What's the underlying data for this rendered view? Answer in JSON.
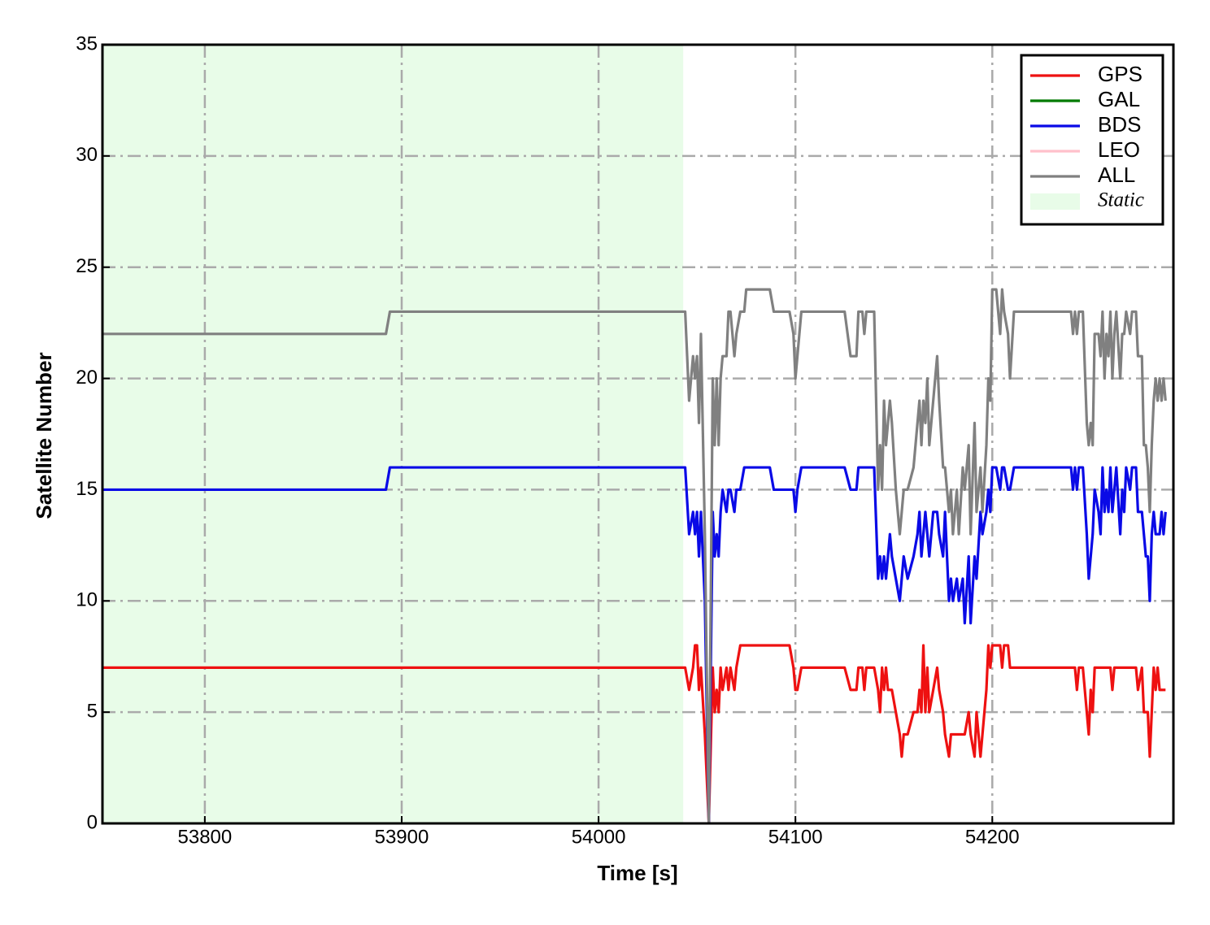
{
  "chart_data": {
    "type": "line",
    "x_label": "Time [s]",
    "y_label": "Satellite Number",
    "x": [
      53748,
      53892,
      53894,
      54044,
      54046,
      54048,
      54049,
      54050,
      54051,
      54052,
      54054,
      54056,
      54058,
      54059,
      54060,
      54061,
      54062,
      54063,
      54065,
      54066,
      54067,
      54069,
      54070,
      54072,
      54074,
      54075,
      54087,
      54089,
      54097,
      54099,
      54100,
      54101,
      54103,
      54125,
      54128,
      54131,
      54132,
      54134,
      54135,
      54136,
      54140,
      54142,
      54143,
      54144,
      54145,
      54146,
      54147,
      54148,
      54149,
      54151,
      54153,
      54154,
      54155,
      54157,
      54160,
      54162,
      54163,
      54164,
      54165,
      54166,
      54167,
      54168,
      54170,
      54172,
      54173,
      54175,
      54176,
      54178,
      54179,
      54180,
      54182,
      54183,
      54185,
      54186,
      54188,
      54189,
      54191,
      54192,
      54194,
      54195,
      54197,
      54198,
      54199,
      54200,
      54202,
      54204,
      54205,
      54206,
      54208,
      54209,
      54211,
      54240,
      54241,
      54242,
      54243,
      54244,
      54246,
      54248,
      54249,
      54250,
      54251,
      54252,
      54254,
      54255,
      54256,
      54257,
      54258,
      54259,
      54260,
      54261,
      54262,
      54263,
      54265,
      54266,
      54267,
      54268,
      54270,
      54271,
      54273,
      54274,
      54276,
      54277,
      54278,
      54279,
      54280,
      54281,
      54282,
      54283,
      54284,
      54285,
      54286,
      54287,
      54288
    ],
    "series": [
      {
        "name": "GPS",
        "color": "#ee1111",
        "values": [
          7,
          7,
          7,
          7,
          6,
          7,
          8,
          8,
          6,
          7,
          4,
          0,
          7,
          5,
          6,
          5,
          7,
          6,
          7,
          6,
          7,
          6,
          7,
          8,
          8,
          8,
          8,
          8,
          8,
          7,
          6,
          6,
          7,
          7,
          6,
          6,
          7,
          7,
          6,
          7,
          7,
          6,
          5,
          7,
          6,
          7,
          6,
          6,
          6,
          5,
          4,
          3,
          4,
          4,
          5,
          5,
          6,
          5,
          8,
          5,
          7,
          5,
          6,
          7,
          6,
          5,
          4,
          3,
          4,
          4,
          4,
          4,
          4,
          4,
          5,
          4,
          3,
          5,
          3,
          4,
          6,
          8,
          7,
          8,
          8,
          8,
          7,
          8,
          8,
          7,
          7,
          7,
          7,
          7,
          6,
          7,
          7,
          5,
          4,
          6,
          5,
          7,
          7,
          7,
          7,
          7,
          7,
          7,
          7,
          6,
          7,
          7,
          7,
          7,
          7,
          7,
          7,
          7,
          7,
          6,
          7,
          5,
          5,
          5,
          3,
          5,
          7,
          6,
          7,
          6,
          6,
          6,
          6
        ]
      },
      {
        "name": "GAL",
        "color": "#007a00"
      },
      {
        "name": "BDS",
        "color": "#0a0ae6",
        "values": [
          15,
          15,
          16,
          16,
          13,
          14,
          13,
          14,
          12,
          14,
          10,
          0,
          14,
          12,
          13,
          12,
          14,
          15,
          14,
          15,
          15,
          14,
          15,
          15,
          16,
          16,
          16,
          15,
          15,
          15,
          14,
          15,
          16,
          16,
          15,
          15,
          16,
          16,
          16,
          16,
          16,
          11,
          12,
          11,
          12,
          11,
          12,
          13,
          12,
          11,
          10,
          11,
          12,
          11,
          12,
          13,
          14,
          12,
          13,
          14,
          13,
          12,
          14,
          14,
          13,
          12,
          14,
          10,
          11,
          10,
          11,
          10,
          11,
          9,
          12,
          9,
          12,
          11,
          14,
          13,
          14,
          15,
          14,
          16,
          16,
          15,
          16,
          16,
          15,
          15,
          16,
          16,
          15,
          16,
          15,
          16,
          16,
          13,
          11,
          12,
          13,
          15,
          14,
          13,
          16,
          14,
          15,
          14,
          16,
          14,
          15,
          16,
          13,
          15,
          14,
          16,
          15,
          16,
          16,
          14,
          14,
          13,
          12,
          12,
          10,
          13,
          14,
          13,
          13,
          13,
          14,
          13,
          14
        ]
      },
      {
        "name": "LEO",
        "color": "#ffc0cb"
      },
      {
        "name": "ALL",
        "color": "#808080",
        "values": [
          22,
          22,
          23,
          23,
          19,
          21,
          20,
          21,
          18,
          22,
          13,
          0,
          20,
          17,
          20,
          17,
          20,
          21,
          21,
          23,
          23,
          21,
          22,
          23,
          23,
          24,
          24,
          23,
          23,
          22,
          20,
          21,
          23,
          23,
          21,
          21,
          23,
          23,
          22,
          23,
          23,
          15,
          17,
          15,
          19,
          17,
          18,
          19,
          18,
          15,
          13,
          14,
          15,
          15,
          16,
          18,
          19,
          17,
          19,
          18,
          20,
          17,
          19,
          21,
          19,
          16,
          16,
          14,
          15,
          13,
          15,
          13,
          16,
          15,
          17,
          13,
          18,
          14,
          16,
          14,
          17,
          20,
          19,
          24,
          24,
          22,
          24,
          23,
          22,
          20,
          23,
          23,
          22,
          23,
          22,
          23,
          23,
          18,
          17,
          18,
          17,
          22,
          22,
          21,
          23,
          20,
          22,
          21,
          23,
          20,
          22,
          23,
          20,
          22,
          22,
          23,
          22,
          23,
          23,
          21,
          21,
          17,
          17,
          16,
          14,
          17,
          19,
          20,
          19,
          20,
          19,
          20,
          19
        ]
      }
    ],
    "static_region": {
      "label": "Static",
      "xlim": [
        53748,
        54043
      ],
      "color": "#e8fce8"
    },
    "xlim": [
      53748,
      54292
    ],
    "ylim": [
      0,
      35
    ],
    "xticks": [
      53800,
      53900,
      54000,
      54100,
      54200
    ],
    "yticks": [
      0,
      5,
      10,
      15,
      20,
      25,
      30,
      35
    ],
    "grid": true,
    "legend": "upper right"
  }
}
